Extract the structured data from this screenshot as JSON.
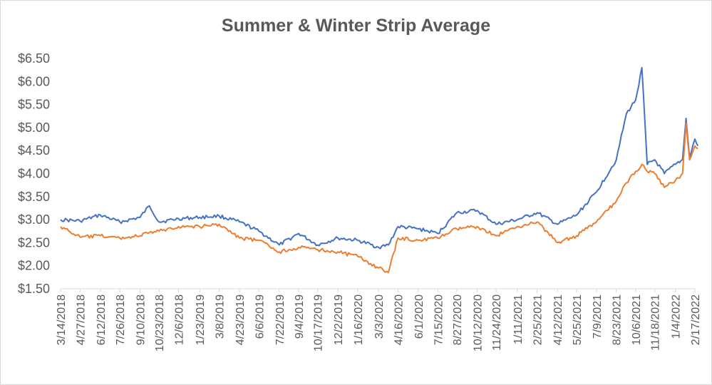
{
  "chart_data": {
    "type": "line",
    "title": "Summer & Winter Strip Average",
    "xlabel": "",
    "ylabel": "",
    "ylim": [
      1.5,
      6.5
    ],
    "y_ticks": [
      "$1.50",
      "$2.00",
      "$2.50",
      "$3.00",
      "$3.50",
      "$4.00",
      "$4.50",
      "$5.00",
      "$5.50",
      "$6.00",
      "$6.50"
    ],
    "x_ticks": [
      "3/14/2018",
      "4/27/2018",
      "6/12/2018",
      "7/26/2018",
      "9/10/2018",
      "10/23/2018",
      "12/6/2018",
      "1/23/2019",
      "3/8/2019",
      "4/23/2019",
      "6/6/2019",
      "7/22/2019",
      "9/4/2019",
      "10/17/2019",
      "12/2/2019",
      "1/16/2020",
      "3/3/2020",
      "4/16/2020",
      "6/1/2020",
      "7/15/2020",
      "8/27/2020",
      "10/12/2020",
      "11/24/2020",
      "1/11/2021",
      "2/25/2021",
      "4/12/2021",
      "5/25/2021",
      "7/9/2021",
      "8/23/2021",
      "10/6/2021",
      "11/18/2021",
      "1/4/2022",
      "2/17/2022"
    ],
    "grid": false,
    "legend": "none",
    "x": [
      "2018-03-14",
      "2018-04-27",
      "2018-06-12",
      "2018-07-26",
      "2018-09-10",
      "2018-10-01",
      "2018-10-23",
      "2018-12-06",
      "2019-01-23",
      "2019-03-08",
      "2019-04-23",
      "2019-06-06",
      "2019-07-22",
      "2019-09-04",
      "2019-10-17",
      "2019-12-02",
      "2020-01-16",
      "2020-03-03",
      "2020-03-25",
      "2020-04-16",
      "2020-06-01",
      "2020-07-15",
      "2020-08-27",
      "2020-10-12",
      "2020-11-24",
      "2021-01-11",
      "2021-02-25",
      "2021-04-12",
      "2021-05-25",
      "2021-07-09",
      "2021-08-23",
      "2021-09-15",
      "2021-10-06",
      "2021-10-20",
      "2021-11-01",
      "2021-11-18",
      "2021-12-10",
      "2022-01-04",
      "2022-01-20",
      "2022-01-28",
      "2022-02-05",
      "2022-02-17",
      "2022-02-24"
    ],
    "series": [
      {
        "color": "#4472c4",
        "values": [
          3.0,
          2.97,
          3.1,
          2.95,
          3.05,
          3.3,
          2.95,
          3.02,
          3.05,
          3.08,
          2.95,
          2.75,
          2.45,
          2.7,
          2.45,
          2.6,
          2.55,
          2.4,
          2.45,
          2.85,
          2.8,
          2.7,
          3.15,
          3.2,
          2.9,
          3.0,
          3.15,
          2.9,
          3.1,
          3.6,
          4.3,
          5.3,
          5.6,
          6.3,
          4.2,
          4.3,
          4.0,
          4.2,
          4.3,
          5.2,
          4.35,
          4.75,
          4.6
        ]
      },
      {
        "color": "#ed7d31",
        "values": [
          2.85,
          2.62,
          2.65,
          2.6,
          2.65,
          2.72,
          2.75,
          2.85,
          2.85,
          2.9,
          2.6,
          2.55,
          2.3,
          2.4,
          2.35,
          2.3,
          2.2,
          1.95,
          1.85,
          2.6,
          2.55,
          2.6,
          2.8,
          2.85,
          2.65,
          2.85,
          2.95,
          2.5,
          2.65,
          2.95,
          3.4,
          3.8,
          4.05,
          4.2,
          4.05,
          4.0,
          3.7,
          3.85,
          4.0,
          5.1,
          4.3,
          4.6,
          4.55
        ]
      }
    ]
  }
}
